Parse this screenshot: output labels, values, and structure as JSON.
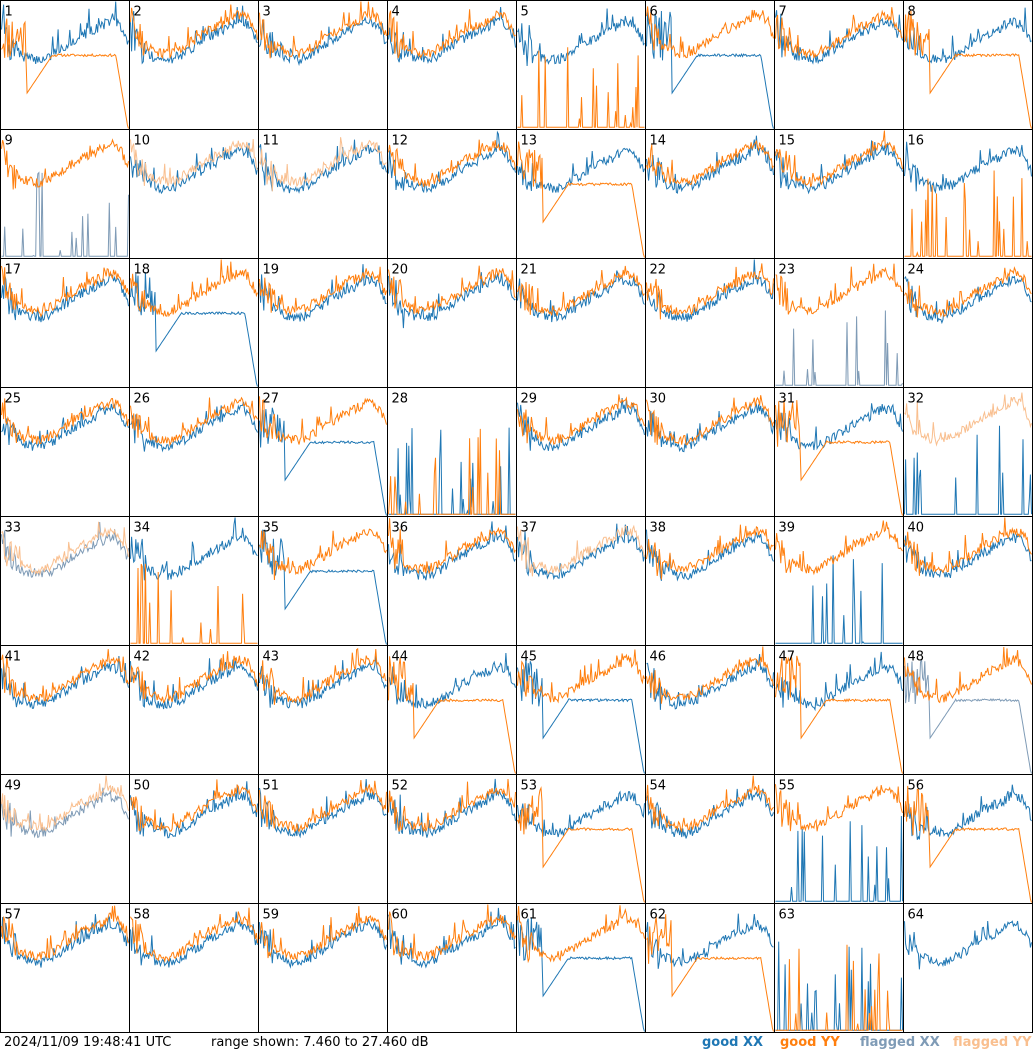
{
  "colors": {
    "good_xx": "#1f77b4",
    "good_yy": "#ff7f0e",
    "flagged_xx": "#7f9bb6",
    "flagged_yy": "#f9bf8f",
    "panel_border": "#000000",
    "background": "#ffffff"
  },
  "footer": {
    "timestamp": "2024/11/09 19:48:41 UTC",
    "range_text": "range shown: 7.460 to 27.460 dB"
  },
  "legend": {
    "good_xx": "good XX",
    "good_yy": "good YY",
    "flagged_xx": "flagged XX",
    "flagged_yy": "flagged YY"
  },
  "chart_data": {
    "type": "line",
    "layout": "8x8 small multiples",
    "ylim": [
      7.46,
      27.46
    ],
    "yunit": "dB",
    "grid": false,
    "legend_placement": "bottom-right",
    "series_names": [
      "good XX",
      "good YY",
      "flagged XX",
      "flagged YY"
    ],
    "panel_ids": [
      "1",
      "2",
      "3",
      "4",
      "5",
      "6",
      "7",
      "8",
      "9",
      "10",
      "11",
      "12",
      "13",
      "14",
      "15",
      "16",
      "17",
      "18",
      "19",
      "20",
      "21",
      "22",
      "23",
      "24",
      "25",
      "26",
      "27",
      "28",
      "29",
      "30",
      "31",
      "32",
      "33",
      "34",
      "35",
      "36",
      "37",
      "38",
      "39",
      "40",
      "41",
      "42",
      "43",
      "44",
      "45",
      "46",
      "47",
      "48",
      "49",
      "50",
      "51",
      "52",
      "53",
      "54",
      "55",
      "56",
      "57",
      "58",
      "59",
      "60",
      "61",
      "62",
      "63",
      "64"
    ],
    "base_profile": [
      23.5,
      21.0,
      19.6,
      19.0,
      18.9,
      19.5,
      20.5,
      21.5,
      22.5,
      23.3,
      24.0,
      25.0,
      24.5,
      21.5
    ],
    "panel_types": {
      "1": {
        "xx": "n",
        "yy": "d"
      },
      "5": {
        "xx": "n",
        "yy": "z"
      },
      "6": {
        "xx": "d",
        "yy": "n"
      },
      "8": {
        "xx": "n",
        "yy": "d"
      },
      "9": {
        "xx": "z",
        "yy": "n",
        "flag": "xx"
      },
      "10": {
        "xx": "n",
        "yy": "n",
        "flag": "yy"
      },
      "11": {
        "xx": "n",
        "yy": "n",
        "flag": "yy"
      },
      "13": {
        "xx": "n",
        "yy": "d"
      },
      "16": {
        "xx": "n",
        "yy": "z"
      },
      "18": {
        "xx": "d",
        "yy": "n"
      },
      "23": {
        "xx": "z",
        "yy": "n",
        "flag": "xx"
      },
      "27": {
        "xx": "d",
        "yy": "n"
      },
      "28": {
        "xx": "z",
        "yy": "z"
      },
      "31": {
        "xx": "n",
        "yy": "d"
      },
      "32": {
        "xx": "z",
        "yy": "n",
        "flag": "yy"
      },
      "33": {
        "xx": "n",
        "yy": "n",
        "flag": "both"
      },
      "34": {
        "xx": "n",
        "yy": "z"
      },
      "35": {
        "xx": "d",
        "yy": "n"
      },
      "37": {
        "xx": "n",
        "yy": "n",
        "flag": "yy"
      },
      "39": {
        "xx": "z",
        "yy": "n"
      },
      "44": {
        "xx": "n",
        "yy": "d"
      },
      "45": {
        "xx": "d",
        "yy": "n"
      },
      "47": {
        "xx": "n",
        "yy": "d"
      },
      "48": {
        "xx": "d",
        "yy": "n",
        "flag": "xx"
      },
      "49": {
        "xx": "n",
        "yy": "n",
        "flag": "both"
      },
      "53": {
        "xx": "n",
        "yy": "d"
      },
      "55": {
        "xx": "z",
        "yy": "n"
      },
      "56": {
        "xx": "n",
        "yy": "d"
      },
      "61": {
        "xx": "d",
        "yy": "n"
      },
      "62": {
        "xx": "n",
        "yy": "d"
      },
      "63": {
        "xx": "z",
        "yy": "z"
      },
      "64": {
        "xx": "n",
        "yy": "none"
      }
    }
  }
}
